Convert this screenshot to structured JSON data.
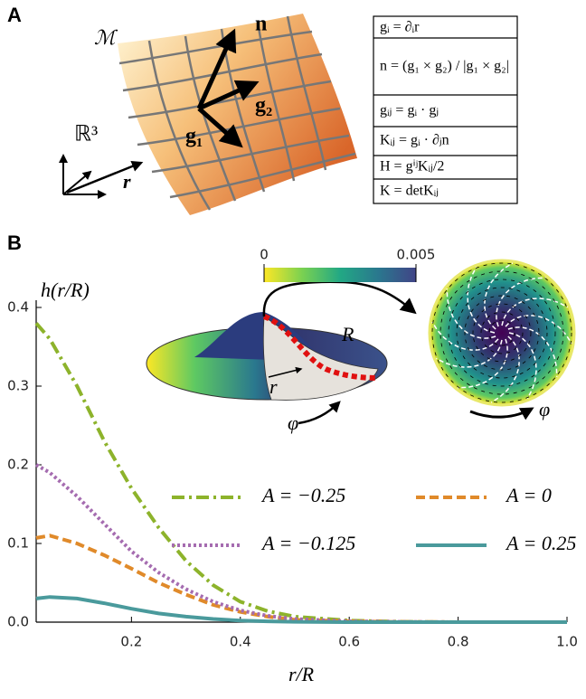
{
  "panel_a": {
    "label": "A",
    "manifold": "ℳ",
    "normal": "n",
    "tangent_1": "g₁",
    "tangent_2": "g₂",
    "space": "ℝ³",
    "position": "r",
    "definitions": [
      "gᵢ = ∂ᵢr",
      "n = (g₁ × g₂) / |g₁ × g₂|",
      "gᵢⱼ = gᵢ · gⱼ",
      "Kᵢⱼ = gᵢ · ∂ⱼn",
      "H = gⁱʲKᵢⱼ/2",
      "K = detKᵢⱼ"
    ]
  },
  "panel_b": {
    "label": "B",
    "disk_labels": [
      "R",
      "r",
      "φ"
    ],
    "top_view_label": "φ"
  },
  "chart_data": {
    "type": "line",
    "y_label": "h(r/R)",
    "x_label": "r/R",
    "x": [
      0.025,
      0.05,
      0.1,
      0.15,
      0.2,
      0.25,
      0.3,
      0.35,
      0.4,
      0.45,
      0.5,
      0.6,
      0.7,
      0.8,
      0.9,
      1.0
    ],
    "series": [
      {
        "name": "A = −0.25",
        "color": "#8db32b",
        "linestyle": "dashdot",
        "values": [
          0.38,
          0.36,
          0.3,
          0.23,
          0.17,
          0.12,
          0.078,
          0.047,
          0.026,
          0.014,
          0.007,
          0.002,
          0.0005,
          0,
          0,
          0
        ]
      },
      {
        "name": "A = 0",
        "color": "#e08a2a",
        "linestyle": "dashed",
        "values": [
          0.107,
          0.11,
          0.1,
          0.085,
          0.068,
          0.05,
          0.035,
          0.022,
          0.013,
          0.007,
          0.003,
          0.001,
          0.0002,
          0,
          0,
          0
        ]
      },
      {
        "name": "A = −0.125",
        "color": "#a56cb0",
        "linestyle": "dotted",
        "values": [
          0.2,
          0.19,
          0.16,
          0.125,
          0.09,
          0.063,
          0.042,
          0.026,
          0.015,
          0.008,
          0.004,
          0.001,
          0.0003,
          0,
          0,
          0
        ]
      },
      {
        "name": "A = 0.25",
        "color": "#4a9a9c",
        "linestyle": "solid",
        "values": [
          0.03,
          0.032,
          0.03,
          0.024,
          0.017,
          0.011,
          0.007,
          0.004,
          0.002,
          0.001,
          0.0005,
          0,
          0,
          0,
          0,
          0
        ]
      }
    ],
    "xlim": [
      0.025,
      1.0
    ],
    "xticks": [
      0.2,
      0.4,
      0.6,
      0.8,
      {
        "value": 1.0,
        "label": "1.0"
      }
    ],
    "ylim": [
      0,
      0.4
    ],
    "yticks": [
      {
        "value": 0,
        "label": "0.0"
      },
      0.1,
      0.2,
      0.3,
      0.4
    ],
    "colorbar": {
      "lim": [
        0,
        0.005
      ],
      "ticks": [
        0,
        0.005
      ]
    }
  }
}
